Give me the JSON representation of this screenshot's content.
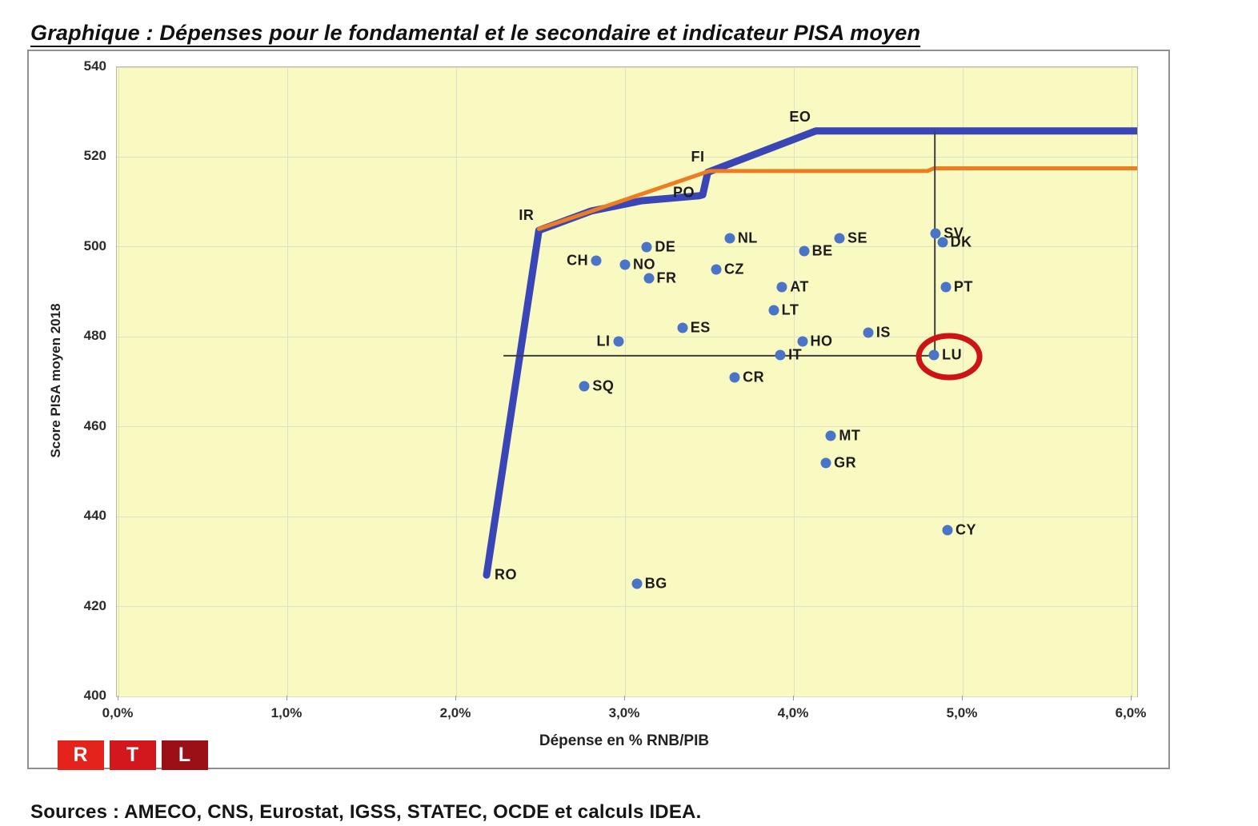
{
  "title": "Graphique : Dépenses pour le fondamental et le secondaire et indicateur PISA moyen",
  "sources": "Sources : AMECO, CNS, Eurostat, IGSS, STATEC, OCDE et calculs IDEA.",
  "logo": {
    "letters": [
      "R",
      "T",
      "L"
    ],
    "colors": [
      "#e3231c",
      "#d2171d",
      "#9a1016"
    ]
  },
  "chart_data": {
    "type": "scatter",
    "title": "Graphique : Dépenses pour le fondamental et le secondaire et indicateur PISA moyen",
    "xlabel": "Dépense en % RNB/PIB",
    "ylabel": "Score PISA moyen 2018",
    "xlim": [
      0,
      6
    ],
    "ylim": [
      400,
      540
    ],
    "grid": true,
    "plot_bg": "#f9f9c2",
    "xticks": {
      "values": [
        0,
        1,
        2,
        3,
        4,
        5,
        6
      ],
      "labels": [
        "0,0%",
        "1,0%",
        "2,0%",
        "3,0%",
        "4,0%",
        "5,0%",
        "6,0%"
      ]
    },
    "yticks": {
      "values": [
        400,
        420,
        440,
        460,
        480,
        500,
        520,
        540
      ],
      "labels": [
        "400",
        "420",
        "440",
        "460",
        "480",
        "500",
        "520",
        "540"
      ]
    },
    "points": [
      {
        "label": "RO",
        "x": 2.18,
        "y": 427,
        "side": "right",
        "marker": false
      },
      {
        "label": "IR",
        "x": 2.49,
        "y": 504,
        "side": "above-left",
        "marker": false
      },
      {
        "label": "PO",
        "x": 3.46,
        "y": 512,
        "side": "left",
        "marker": false
      },
      {
        "label": "FI",
        "x": 3.5,
        "y": 517,
        "side": "above-left",
        "marker": false
      },
      {
        "label": "EO",
        "x": 4.13,
        "y": 526,
        "side": "above-left",
        "marker": false
      },
      {
        "label": "CH",
        "x": 2.83,
        "y": 497,
        "side": "left",
        "marker": true
      },
      {
        "label": "NO",
        "x": 3.0,
        "y": 496,
        "side": "right",
        "marker": true
      },
      {
        "label": "DE",
        "x": 3.13,
        "y": 500,
        "side": "right",
        "marker": true
      },
      {
        "label": "FR",
        "x": 3.14,
        "y": 493,
        "side": "right",
        "marker": true
      },
      {
        "label": "CZ",
        "x": 3.54,
        "y": 495,
        "side": "right",
        "marker": true
      },
      {
        "label": "NL",
        "x": 3.62,
        "y": 502,
        "side": "right",
        "marker": true
      },
      {
        "label": "BE",
        "x": 4.06,
        "y": 499,
        "side": "right",
        "marker": true
      },
      {
        "label": "SE",
        "x": 4.27,
        "y": 502,
        "side": "right",
        "marker": true
      },
      {
        "label": "SV",
        "x": 4.84,
        "y": 503,
        "side": "right",
        "marker": true
      },
      {
        "label": "DK",
        "x": 4.88,
        "y": 501,
        "side": "right",
        "marker": true
      },
      {
        "label": "PT",
        "x": 4.9,
        "y": 491,
        "side": "right",
        "marker": true
      },
      {
        "label": "AT",
        "x": 3.93,
        "y": 491,
        "side": "right",
        "marker": true
      },
      {
        "label": "LT",
        "x": 3.88,
        "y": 486,
        "side": "right",
        "marker": true
      },
      {
        "label": "ES",
        "x": 3.34,
        "y": 482,
        "side": "right",
        "marker": true
      },
      {
        "label": "LI",
        "x": 2.96,
        "y": 479,
        "side": "left",
        "marker": true
      },
      {
        "label": "IS",
        "x": 4.44,
        "y": 481,
        "side": "right",
        "marker": true
      },
      {
        "label": "HO",
        "x": 4.05,
        "y": 479,
        "side": "right",
        "marker": true
      },
      {
        "label": "IT",
        "x": 3.92,
        "y": 476,
        "side": "right",
        "marker": true
      },
      {
        "label": "LU",
        "x": 4.83,
        "y": 476,
        "side": "right",
        "marker": true
      },
      {
        "label": "CR",
        "x": 3.65,
        "y": 471,
        "side": "right",
        "marker": true
      },
      {
        "label": "SQ",
        "x": 2.76,
        "y": 469,
        "side": "right",
        "marker": true
      },
      {
        "label": "MT",
        "x": 4.22,
        "y": 458,
        "side": "right",
        "marker": true
      },
      {
        "label": "GR",
        "x": 4.19,
        "y": 452,
        "side": "right",
        "marker": true
      },
      {
        "label": "CY",
        "x": 4.91,
        "y": 437,
        "side": "right",
        "marker": true
      },
      {
        "label": "BG",
        "x": 3.07,
        "y": 425,
        "side": "right",
        "marker": true
      }
    ],
    "series": [
      {
        "name": "frontier-blue",
        "type": "line",
        "color": "#3a46b6",
        "width": 9,
        "points": [
          [
            2.18,
            427
          ],
          [
            2.49,
            503.7
          ],
          [
            2.8,
            508.0
          ],
          [
            3.1,
            510.3
          ],
          [
            3.44,
            511.4
          ],
          [
            3.46,
            511.6
          ],
          [
            3.49,
            516.6
          ],
          [
            4.13,
            525.8
          ],
          [
            6.03,
            525.8
          ]
        ]
      },
      {
        "name": "line-orange",
        "type": "line",
        "color": "#ee7c20",
        "width": 5,
        "points": [
          [
            2.49,
            504
          ],
          [
            3.5,
            516.9
          ],
          [
            4.79,
            516.9
          ],
          [
            4.83,
            517.5
          ],
          [
            6.03,
            517.5
          ]
        ]
      }
    ],
    "reference_lines": [
      {
        "name": "lu-vertical-reference-line",
        "from": [
          4.835,
          525.8
        ],
        "to": [
          4.835,
          475.8
        ],
        "color": "#3f3f3f",
        "width": 2
      },
      {
        "name": "lu-horizontal-reference-line",
        "from": [
          2.28,
          475.8
        ],
        "to": [
          4.835,
          475.8
        ],
        "color": "#3f3f3f",
        "width": 2
      }
    ],
    "highlight_ellipse": {
      "label": "LU",
      "x": 4.92,
      "y": 475.6,
      "color": "#cd1414"
    },
    "legend": null
  }
}
